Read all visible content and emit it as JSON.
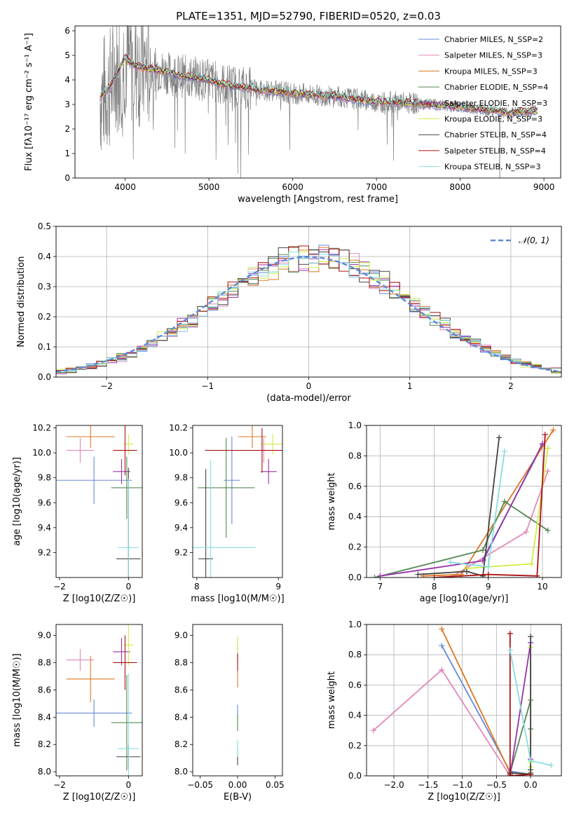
{
  "figure_title": "PLATE=1351, MJD=52790, FIBERID=0520, z=0.03",
  "model_colors": [
    "#6688dd",
    "#e388bb",
    "#dd7722",
    "#558855",
    "#9933aa",
    "#ccee44",
    "#444444",
    "#aa1111",
    "#88dddd"
  ],
  "chart_data": [
    {
      "id": "spectrum",
      "type": "line",
      "title": "PLATE=1351, MJD=52790, FIBERID=0520, z=0.03",
      "xlabel": "wavelength [Angstrom, rest frame]",
      "ylabel": "Flux [fλ10⁻¹⁷ erg cm⁻² s⁻¹ A⁻¹]",
      "xlim": [
        3400,
        9200
      ],
      "ylim": [
        0,
        6.2
      ],
      "xticks": [
        4000,
        5000,
        6000,
        7000,
        8000,
        9000
      ],
      "yticks": [
        0,
        1,
        2,
        3,
        4,
        5,
        6
      ],
      "legend_position": "upper-right",
      "data_color": "#808080",
      "observed_continuum": {
        "x": [
          3700,
          3800,
          3900,
          4000,
          4100,
          4200,
          4400,
          4600,
          4800,
          5000,
          5200,
          5400,
          5600,
          5800,
          6000,
          6200,
          6400,
          6600,
          6800,
          7000,
          7200,
          7400,
          7600,
          7800,
          8000,
          8200,
          8400,
          8600,
          8800,
          8920
        ],
        "y": [
          3.3,
          3.6,
          4.3,
          4.9,
          4.6,
          4.5,
          4.4,
          4.2,
          4.1,
          4.0,
          3.8,
          3.7,
          3.6,
          3.55,
          3.45,
          3.4,
          3.35,
          3.3,
          3.2,
          3.1,
          3.1,
          3.05,
          3.0,
          2.95,
          2.9,
          2.8,
          2.75,
          2.65,
          2.7,
          2.75
        ]
      },
      "legend": [
        {
          "label": "Chabrier MILES, N_SSP=2",
          "color": "#6688dd"
        },
        {
          "label": "Salpeter MILES, N_SSP=3",
          "color": "#e388bb"
        },
        {
          "label": "Kroupa MILES, N_SSP=3",
          "color": "#dd7722"
        },
        {
          "label": "Chabrier ELODIE, N_SSP=4",
          "color": "#558855"
        },
        {
          "label": "Salpeter ELODIE, N_SSP=3",
          "color": "#9933aa"
        },
        {
          "label": "Kroupa ELODIE, N_SSP=3",
          "color": "#ccee44"
        },
        {
          "label": "Chabrier STELIB, N_SSP=4",
          "color": "#444444"
        },
        {
          "label": "Salpeter STELIB, N_SSP=4",
          "color": "#aa1111"
        },
        {
          "label": "Kroupa STELIB, N_SSP=3",
          "color": "#88dddd"
        }
      ]
    },
    {
      "id": "residuals",
      "type": "histogram",
      "xlabel": "(data-model)/error",
      "ylabel": "Normed distribution",
      "xlim": [
        -2.5,
        2.5
      ],
      "ylim": [
        0,
        0.5
      ],
      "xticks": [
        -2,
        -1,
        0,
        1,
        2
      ],
      "yticks": [
        0.0,
        0.1,
        0.2,
        0.3,
        0.4,
        0.5
      ],
      "bin_width": 0.1,
      "legend_label": "𝒩(0, 1)",
      "legend_position": "upper-right",
      "grid": true
    },
    {
      "id": "age_vs_Z",
      "type": "scatter",
      "xlabel": "Z [log10(Z/Z☉)]",
      "ylabel": "age  [log10(age/yr)]",
      "xlim": [
        -2.1,
        0.4
      ],
      "ylim": [
        9.0,
        10.22
      ],
      "xticks": [
        -2,
        0
      ],
      "yticks": [
        9.2,
        9.4,
        9.6,
        9.8,
        10.0,
        10.2
      ],
      "points": [
        {
          "x": -1.0,
          "xerr": 1.1,
          "y": 9.78,
          "yerr": 0.19
        },
        {
          "x": -1.4,
          "xerr": 0.4,
          "y": 10.02,
          "yerr": 0.1
        },
        {
          "x": -1.1,
          "xerr": 0.7,
          "y": 10.13,
          "yerr": 0.09
        },
        {
          "x": -0.05,
          "xerr": 0.45,
          "y": 9.72,
          "yerr": 0.25
        },
        {
          "x": -0.2,
          "xerr": 0.25,
          "y": 9.85,
          "yerr": 0.1
        },
        {
          "x": 0.0,
          "xerr": 0.15,
          "y": 10.07,
          "yerr": 0.08
        },
        {
          "x": 0.0,
          "xerr": 0.35,
          "y": 9.15,
          "yerr": 0.73
        },
        {
          "x": -0.1,
          "xerr": 0.35,
          "y": 10.02,
          "yerr": 0.2
        },
        {
          "x": 0.0,
          "xerr": 0.3,
          "y": 9.24,
          "yerr": 0.55
        }
      ]
    },
    {
      "id": "age_vs_mass",
      "type": "scatter",
      "xlabel": "mass [log10(M/M☉)]",
      "ylabel": "",
      "xlim": [
        7.95,
        9.05
      ],
      "ylim": [
        9.0,
        10.22
      ],
      "xticks": [
        8,
        9
      ],
      "yticks": [
        9.2,
        9.4,
        9.6,
        9.8,
        10.0,
        10.2
      ],
      "points": [
        {
          "x": 8.43,
          "xerr": 0.1,
          "y": 9.78,
          "yerr": 0.35
        },
        {
          "x": 8.82,
          "xerr": 0.08,
          "y": 10.02,
          "yerr": 0.1
        },
        {
          "x": 8.68,
          "xerr": 0.17,
          "y": 10.13,
          "yerr": 0.09
        },
        {
          "x": 8.36,
          "xerr": 0.35,
          "y": 9.72,
          "yerr": 0.4
        },
        {
          "x": 8.88,
          "xerr": 0.1,
          "y": 9.85,
          "yerr": 0.1
        },
        {
          "x": 8.93,
          "xerr": 0.15,
          "y": 10.07,
          "yerr": 0.08
        },
        {
          "x": 8.11,
          "xerr": 0.09,
          "y": 9.15,
          "yerr": 0.72
        },
        {
          "x": 8.8,
          "xerr": 0.7,
          "y": 10.02,
          "yerr": 0.18
        },
        {
          "x": 8.17,
          "xerr": 0.55,
          "y": 9.24,
          "yerr": 0.7
        }
      ]
    },
    {
      "id": "weight_vs_age",
      "type": "line",
      "xlabel": "age  [log10(age/yr)]",
      "ylabel": "mass weight",
      "xlim": [
        6.75,
        10.35
      ],
      "ylim": [
        0,
        1.0
      ],
      "xticks": [
        7,
        8,
        9,
        10
      ],
      "yticks": [
        0.0,
        0.2,
        0.4,
        0.6,
        0.8,
        1.0
      ],
      "grid": true,
      "series": [
        {
          "x": [
            8.9,
            10.0
          ],
          "y": [
            0.12,
            0.87
          ]
        },
        {
          "x": [
            8.3,
            9.7,
            10.1
          ],
          "y": [
            0.0,
            0.3,
            0.7
          ]
        },
        {
          "x": [
            7.8,
            8.5,
            10.2
          ],
          "y": [
            0.01,
            0.02,
            0.97
          ]
        },
        {
          "x": [
            6.9,
            8.9,
            9.3,
            10.1
          ],
          "y": [
            0.0,
            0.18,
            0.5,
            0.31
          ]
        },
        {
          "x": [
            7.0,
            8.9,
            10.0
          ],
          "y": [
            0.01,
            0.11,
            0.88
          ]
        },
        {
          "x": [
            8.6,
            9.8,
            10.1
          ],
          "y": [
            0.06,
            0.09,
            0.85
          ]
        },
        {
          "x": [
            7.7,
            8.6,
            8.9,
            9.2
          ],
          "y": [
            0.02,
            0.04,
            0.01,
            0.92
          ]
        },
        {
          "x": [
            8.0,
            9.0,
            9.9,
            10.05
          ],
          "y": [
            0.0,
            0.02,
            0.01,
            0.94
          ]
        },
        {
          "x": [
            8.3,
            9.0,
            9.3
          ],
          "y": [
            0.1,
            0.07,
            0.83
          ]
        }
      ]
    },
    {
      "id": "mass_vs_Z",
      "type": "scatter",
      "xlabel": "Z [log10(Z/Z☉)]",
      "ylabel": "mass [log10(M/M☉)]",
      "xlim": [
        -2.1,
        0.4
      ],
      "ylim": [
        7.97,
        9.08
      ],
      "xticks": [
        -2,
        0
      ],
      "yticks": [
        8.0,
        8.2,
        8.4,
        8.6,
        8.8,
        9.0
      ],
      "points": [
        {
          "x": -1.0,
          "xerr": 1.1,
          "y": 8.43,
          "yerr": 0.1
        },
        {
          "x": -1.4,
          "xerr": 0.4,
          "y": 8.82,
          "yerr": 0.08
        },
        {
          "x": -1.1,
          "xerr": 0.7,
          "y": 8.68,
          "yerr": 0.17
        },
        {
          "x": -0.05,
          "xerr": 0.45,
          "y": 8.36,
          "yerr": 0.35
        },
        {
          "x": -0.2,
          "xerr": 0.25,
          "y": 8.88,
          "yerr": 0.1
        },
        {
          "x": 0.0,
          "xerr": 0.15,
          "y": 8.93,
          "yerr": 0.15
        },
        {
          "x": 0.0,
          "xerr": 0.35,
          "y": 8.11,
          "yerr": 0.09
        },
        {
          "x": -0.1,
          "xerr": 0.35,
          "y": 8.8,
          "yerr": 0.2
        },
        {
          "x": 0.0,
          "xerr": 0.3,
          "y": 8.17,
          "yerr": 0.55
        }
      ]
    },
    {
      "id": "mass_vs_ebv",
      "type": "scatter",
      "xlabel": "E(B-V)",
      "ylabel": "",
      "xlim": [
        -0.06,
        0.06
      ],
      "ylim": [
        7.97,
        9.08
      ],
      "xticks": [
        -0.05,
        0.0,
        0.05
      ],
      "yticks": [
        8.0,
        8.2,
        8.4,
        8.6,
        8.8,
        9.0
      ],
      "points": [
        {
          "x": 0.0,
          "y": 8.43
        },
        {
          "x": 0.0,
          "y": 8.82
        },
        {
          "x": 0.0,
          "y": 8.68
        },
        {
          "x": 0.0,
          "y": 8.36
        },
        {
          "x": 0.0,
          "y": 8.88
        },
        {
          "x": 0.0,
          "y": 8.93
        },
        {
          "x": 0.0,
          "y": 8.11
        },
        {
          "x": 0.0,
          "y": 8.8
        },
        {
          "x": 0.0,
          "y": 8.17
        }
      ]
    },
    {
      "id": "weight_vs_Z",
      "type": "line",
      "xlabel": "Z [log10(Z/Z☉)]",
      "ylabel": "mass weight",
      "xlim": [
        -2.4,
        0.45
      ],
      "ylim": [
        0,
        1.0
      ],
      "xticks": [
        -2.0,
        -1.5,
        -1.0,
        -0.5,
        0.0
      ],
      "yticks": [
        0.0,
        0.2,
        0.4,
        0.6,
        0.8,
        1.0
      ],
      "grid": true,
      "series": [
        {
          "x": [
            -1.3,
            -0.3,
            0.0
          ],
          "y": [
            0.86,
            0.03,
            0.01
          ]
        },
        {
          "x": [
            -2.3,
            -1.3,
            -0.3
          ],
          "y": [
            0.3,
            0.7,
            0.0
          ]
        },
        {
          "x": [
            -1.3,
            -0.3,
            0.0
          ],
          "y": [
            0.97,
            0.02,
            0.01
          ]
        },
        {
          "x": [
            -0.3,
            0.0,
            0.0,
            0.0
          ],
          "y": [
            0.02,
            0.5,
            0.31,
            0.02
          ]
        },
        {
          "x": [
            -0.3,
            0.0,
            0.0
          ],
          "y": [
            0.0,
            0.88,
            0.11
          ]
        },
        {
          "x": [
            0.0,
            0.0,
            0.0
          ],
          "y": [
            0.85,
            0.09,
            0.06
          ]
        },
        {
          "x": [
            0.0,
            0.0,
            0.0,
            -0.3
          ],
          "y": [
            0.92,
            0.04,
            0.01,
            0.02
          ]
        },
        {
          "x": [
            -0.3,
            -0.3,
            -0.3,
            0.0
          ],
          "y": [
            0.94,
            0.01,
            0.0,
            0.01
          ]
        },
        {
          "x": [
            -0.3,
            0.0,
            0.3
          ],
          "y": [
            0.83,
            0.1,
            0.07
          ]
        }
      ]
    }
  ]
}
